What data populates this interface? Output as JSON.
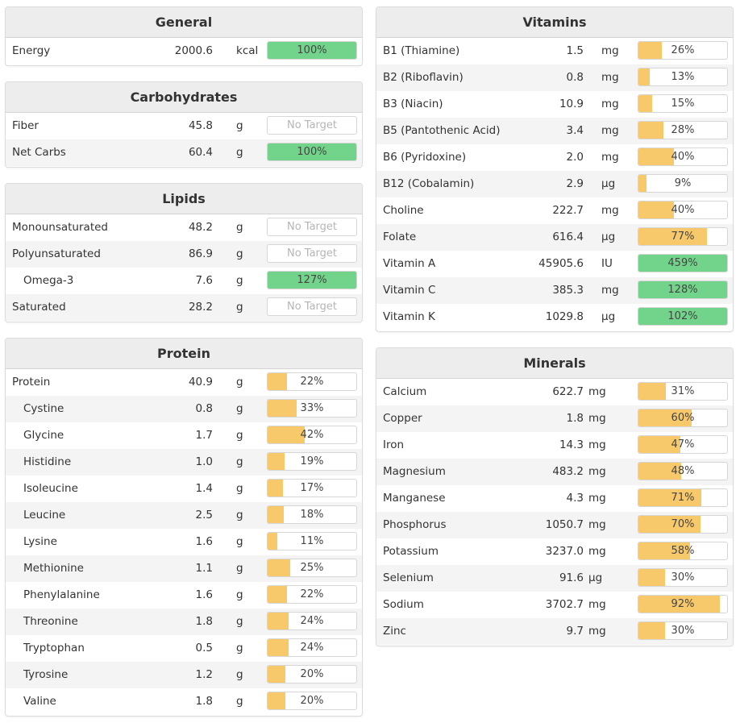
{
  "general": {
    "title": "General",
    "rows": [
      {
        "name": "Energy",
        "amount": "2000.6",
        "unit": "kcal",
        "pct_label": "100%",
        "pct": 100,
        "color": "green"
      }
    ]
  },
  "carbohydrates": {
    "title": "Carbohydrates",
    "rows": [
      {
        "name": "Fiber",
        "amount": "45.8",
        "unit": "g",
        "pct_label": "No Target",
        "pct": 0,
        "color": "none"
      },
      {
        "name": "Net Carbs",
        "amount": "60.4",
        "unit": "g",
        "pct_label": "100%",
        "pct": 100,
        "color": "green"
      }
    ]
  },
  "lipids": {
    "title": "Lipids",
    "rows": [
      {
        "name": "Monounsaturated",
        "amount": "48.2",
        "unit": "g",
        "pct_label": "No Target",
        "pct": 0,
        "color": "none",
        "indent": false
      },
      {
        "name": "Polyunsaturated",
        "amount": "86.9",
        "unit": "g",
        "pct_label": "No Target",
        "pct": 0,
        "color": "none",
        "indent": false
      },
      {
        "name": "Omega-3",
        "amount": "7.6",
        "unit": "g",
        "pct_label": "127%",
        "pct": 127,
        "color": "green",
        "indent": true
      },
      {
        "name": "Saturated",
        "amount": "28.2",
        "unit": "g",
        "pct_label": "No Target",
        "pct": 0,
        "color": "none",
        "indent": false
      }
    ]
  },
  "protein": {
    "title": "Protein",
    "rows": [
      {
        "name": "Protein",
        "amount": "40.9",
        "unit": "g",
        "pct_label": "22%",
        "pct": 22,
        "color": "yellow",
        "indent": false
      },
      {
        "name": "Cystine",
        "amount": "0.8",
        "unit": "g",
        "pct_label": "33%",
        "pct": 33,
        "color": "yellow",
        "indent": true
      },
      {
        "name": "Glycine",
        "amount": "1.7",
        "unit": "g",
        "pct_label": "42%",
        "pct": 42,
        "color": "yellow",
        "indent": true
      },
      {
        "name": "Histidine",
        "amount": "1.0",
        "unit": "g",
        "pct_label": "19%",
        "pct": 19,
        "color": "yellow",
        "indent": true
      },
      {
        "name": "Isoleucine",
        "amount": "1.4",
        "unit": "g",
        "pct_label": "17%",
        "pct": 17,
        "color": "yellow",
        "indent": true
      },
      {
        "name": "Leucine",
        "amount": "2.5",
        "unit": "g",
        "pct_label": "18%",
        "pct": 18,
        "color": "yellow",
        "indent": true
      },
      {
        "name": "Lysine",
        "amount": "1.6",
        "unit": "g",
        "pct_label": "11%",
        "pct": 11,
        "color": "yellow",
        "indent": true
      },
      {
        "name": "Methionine",
        "amount": "1.1",
        "unit": "g",
        "pct_label": "25%",
        "pct": 25,
        "color": "yellow",
        "indent": true
      },
      {
        "name": "Phenylalanine",
        "amount": "1.6",
        "unit": "g",
        "pct_label": "22%",
        "pct": 22,
        "color": "yellow",
        "indent": true
      },
      {
        "name": "Threonine",
        "amount": "1.8",
        "unit": "g",
        "pct_label": "24%",
        "pct": 24,
        "color": "yellow",
        "indent": true
      },
      {
        "name": "Tryptophan",
        "amount": "0.5",
        "unit": "g",
        "pct_label": "24%",
        "pct": 24,
        "color": "yellow",
        "indent": true
      },
      {
        "name": "Tyrosine",
        "amount": "1.2",
        "unit": "g",
        "pct_label": "20%",
        "pct": 20,
        "color": "yellow",
        "indent": true
      },
      {
        "name": "Valine",
        "amount": "1.8",
        "unit": "g",
        "pct_label": "20%",
        "pct": 20,
        "color": "yellow",
        "indent": true
      }
    ]
  },
  "vitamins": {
    "title": "Vitamins",
    "rows": [
      {
        "name": "B1 (Thiamine)",
        "amount": "1.5",
        "unit": "mg",
        "pct_label": "26%",
        "pct": 26,
        "color": "yellow"
      },
      {
        "name": "B2 (Riboflavin)",
        "amount": "0.8",
        "unit": "mg",
        "pct_label": "13%",
        "pct": 13,
        "color": "yellow"
      },
      {
        "name": "B3 (Niacin)",
        "amount": "10.9",
        "unit": "mg",
        "pct_label": "15%",
        "pct": 15,
        "color": "yellow"
      },
      {
        "name": "B5 (Pantothenic Acid)",
        "amount": "3.4",
        "unit": "mg",
        "pct_label": "28%",
        "pct": 28,
        "color": "yellow"
      },
      {
        "name": "B6 (Pyridoxine)",
        "amount": "2.0",
        "unit": "mg",
        "pct_label": "40%",
        "pct": 40,
        "color": "yellow"
      },
      {
        "name": "B12 (Cobalamin)",
        "amount": "2.9",
        "unit": "µg",
        "pct_label": "9%",
        "pct": 9,
        "color": "yellow"
      },
      {
        "name": "Choline",
        "amount": "222.7",
        "unit": "mg",
        "pct_label": "40%",
        "pct": 40,
        "color": "yellow"
      },
      {
        "name": "Folate",
        "amount": "616.4",
        "unit": "µg",
        "pct_label": "77%",
        "pct": 77,
        "color": "yellow"
      },
      {
        "name": "Vitamin A",
        "amount": "45905.6",
        "unit": "IU",
        "pct_label": "459%",
        "pct": 459,
        "color": "green"
      },
      {
        "name": "Vitamin C",
        "amount": "385.3",
        "unit": "mg",
        "pct_label": "128%",
        "pct": 128,
        "color": "green"
      },
      {
        "name": "Vitamin K",
        "amount": "1029.8",
        "unit": "µg",
        "pct_label": "102%",
        "pct": 102,
        "color": "green"
      }
    ]
  },
  "minerals": {
    "title": "Minerals",
    "rows": [
      {
        "name": "Calcium",
        "amount": "622.7",
        "unit": "mg",
        "pct_label": "31%",
        "pct": 31,
        "color": "yellow"
      },
      {
        "name": "Copper",
        "amount": "1.8",
        "unit": "mg",
        "pct_label": "60%",
        "pct": 60,
        "color": "yellow"
      },
      {
        "name": "Iron",
        "amount": "14.3",
        "unit": "mg",
        "pct_label": "47%",
        "pct": 47,
        "color": "yellow"
      },
      {
        "name": "Magnesium",
        "amount": "483.2",
        "unit": "mg",
        "pct_label": "48%",
        "pct": 48,
        "color": "yellow"
      },
      {
        "name": "Manganese",
        "amount": "4.3",
        "unit": "mg",
        "pct_label": "71%",
        "pct": 71,
        "color": "yellow"
      },
      {
        "name": "Phosphorus",
        "amount": "1050.7",
        "unit": "mg",
        "pct_label": "70%",
        "pct": 70,
        "color": "yellow"
      },
      {
        "name": "Potassium",
        "amount": "3237.0",
        "unit": "mg",
        "pct_label": "58%",
        "pct": 58,
        "color": "yellow"
      },
      {
        "name": "Selenium",
        "amount": "91.6",
        "unit": "µg",
        "pct_label": "30%",
        "pct": 30,
        "color": "yellow"
      },
      {
        "name": "Sodium",
        "amount": "3702.7",
        "unit": "mg",
        "pct_label": "92%",
        "pct": 92,
        "color": "yellow"
      },
      {
        "name": "Zinc",
        "amount": "9.7",
        "unit": "mg",
        "pct_label": "30%",
        "pct": 30,
        "color": "yellow"
      }
    ]
  },
  "colors": {
    "bar_yellow": "#f7c96b",
    "bar_green": "#72d48a",
    "header_bg": "#ededed",
    "alt_row_bg": "#f4f4f4"
  }
}
